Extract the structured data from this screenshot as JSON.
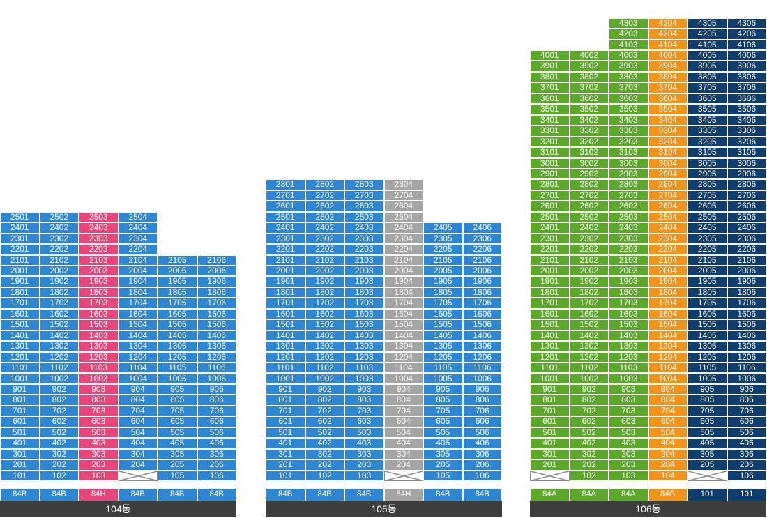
{
  "colors": {
    "blue": "#2f86d2",
    "pink": "#e8457a",
    "gray": "#a5a5a5",
    "green": "#5ba82b",
    "orange": "#f39319",
    "navy": "#0d3e6e",
    "label_bg": "#3e3e3e"
  },
  "buildings": [
    {
      "name": "104동",
      "columns": [
        {
          "line": "01",
          "top": 25,
          "color": "blue",
          "type": "84B",
          "missing": []
        },
        {
          "line": "02",
          "top": 25,
          "color": "blue",
          "type": "84B",
          "missing": []
        },
        {
          "line": "03",
          "top": 25,
          "color": "pink",
          "type": "84H",
          "missing": []
        },
        {
          "line": "04",
          "top": 25,
          "color": "blue",
          "type": "84B",
          "missing": [
            1
          ]
        },
        {
          "line": "05",
          "top": 21,
          "color": "blue",
          "type": "84B",
          "missing": []
        },
        {
          "line": "06",
          "top": 21,
          "color": "blue",
          "type": "84B",
          "missing": []
        }
      ]
    },
    {
      "name": "105동",
      "columns": [
        {
          "line": "01",
          "top": 28,
          "color": "blue",
          "type": "84B",
          "missing": []
        },
        {
          "line": "02",
          "top": 28,
          "color": "blue",
          "type": "84B",
          "missing": []
        },
        {
          "line": "03",
          "top": 28,
          "color": "blue",
          "type": "84B",
          "missing": []
        },
        {
          "line": "04",
          "top": 28,
          "color": "gray",
          "type": "84H",
          "missing": [
            1
          ]
        },
        {
          "line": "05",
          "top": 24,
          "color": "blue",
          "type": "84B",
          "missing": []
        },
        {
          "line": "06",
          "top": 24,
          "color": "blue",
          "type": "84B",
          "missing": []
        }
      ]
    },
    {
      "name": "106동",
      "columns": [
        {
          "line": "01",
          "top": 40,
          "color": "green",
          "type": "84A",
          "missing": [
            1
          ]
        },
        {
          "line": "02",
          "top": 40,
          "color": "green",
          "type": "84A",
          "missing": []
        },
        {
          "line": "03",
          "top": 43,
          "color": "green",
          "type": "84A",
          "missing": []
        },
        {
          "line": "04",
          "top": 43,
          "color": "orange",
          "type": "84G",
          "missing": []
        },
        {
          "line": "05",
          "top": 43,
          "color": "navy",
          "type": "101",
          "missing": [
            1
          ]
        },
        {
          "line": "06",
          "top": 43,
          "color": "navy",
          "type": "101",
          "missing": []
        }
      ]
    }
  ]
}
